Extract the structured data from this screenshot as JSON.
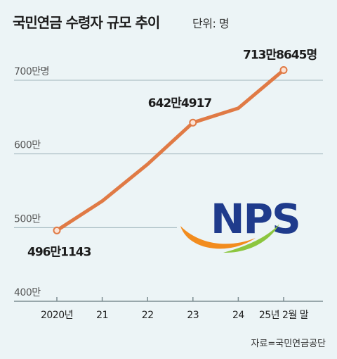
{
  "header": {
    "title": "국민연금 수령자 규모 추이",
    "unit": "단위: 명"
  },
  "source": "자료=국민연금공단",
  "logo": {
    "text": "NPS",
    "text_color": "#1f3b8c",
    "swoosh_colors": [
      "#f28c1e",
      "#8cc63f"
    ]
  },
  "colors": {
    "background": "#ecf4f6",
    "line": "#e07a45",
    "grid": "#9fb4bb",
    "text": "#1c1c1c"
  },
  "chart_data": {
    "type": "line",
    "title": "국민연금 수령자 규모 추이",
    "unit": "단위: 명",
    "x": [
      "2020년",
      "21",
      "22",
      "23",
      "24",
      "25년 2월 말"
    ],
    "series": [
      {
        "values": [
          4961143,
          5360000,
          5860000,
          6424917,
          6620000,
          7138645
        ]
      }
    ],
    "ylim": [
      3800000,
      7300000
    ],
    "yticks": [
      {
        "value": 4000000,
        "label": "400만"
      },
      {
        "value": 5000000,
        "label": "500만"
      },
      {
        "value": 6000000,
        "label": "600만"
      },
      {
        "value": 7000000,
        "label": "700만명"
      }
    ],
    "annotations": [
      {
        "index": 0,
        "label": "496만1143"
      },
      {
        "index": 3,
        "label": "642만4917"
      },
      {
        "index": 5,
        "label": "713만8645명"
      }
    ],
    "grid": true
  }
}
